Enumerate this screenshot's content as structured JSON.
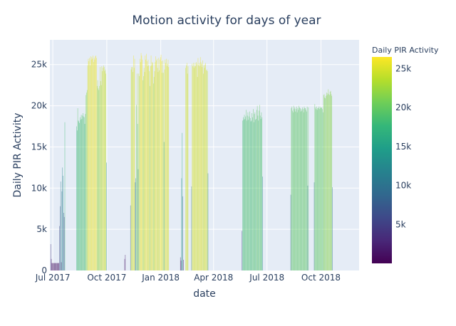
{
  "chart_data": {
    "type": "bar",
    "title": "Motion activity for days of year",
    "xlabel": "date",
    "ylabel": "Daily PIR Activity",
    "colorbar_title": "Daily PIR Activity",
    "colorscale": "Viridis",
    "colorscale_stops": [
      "#440154",
      "#482878",
      "#3e4989",
      "#31688e",
      "#26828e",
      "#1f9e89",
      "#35b779",
      "#6ece58",
      "#b5de2b",
      "#fde725"
    ],
    "color_range": [
      0,
      26500
    ],
    "xlim": [
      "2017-06-26",
      "2018-12-05"
    ],
    "ylim": [
      0,
      28000
    ],
    "x_ticks": [
      {
        "date": "2017-07-01",
        "label": "Jul 2017"
      },
      {
        "date": "2017-10-01",
        "label": "Oct 2017"
      },
      {
        "date": "2018-01-01",
        "label": "Jan 2018"
      },
      {
        "date": "2018-04-01",
        "label": "Apr 2018"
      },
      {
        "date": "2018-07-01",
        "label": "Jul 2018"
      },
      {
        "date": "2018-10-01",
        "label": "Oct 2018"
      }
    ],
    "y_ticks": [
      {
        "value": 0,
        "label": "0"
      },
      {
        "value": 5000,
        "label": "5k"
      },
      {
        "value": 10000,
        "label": "10k"
      },
      {
        "value": 15000,
        "label": "15k"
      },
      {
        "value": 20000,
        "label": "20k"
      },
      {
        "value": 25000,
        "label": "25k"
      }
    ],
    "colorbar_ticks": [
      {
        "value": 5000,
        "label": "5k"
      },
      {
        "value": 10000,
        "label": "10k"
      },
      {
        "value": 15000,
        "label": "15k"
      },
      {
        "value": 20000,
        "label": "20k"
      },
      {
        "value": 25000,
        "label": "25k"
      }
    ],
    "series": [
      {
        "name": "Daily PIR Activity",
        "segments": [
          {
            "start": "2017-06-27",
            "values": [
              3200,
              1400,
              900,
              900,
              900,
              900,
              900,
              900,
              900,
              900,
              900,
              900,
              900,
              900,
              900,
              5400,
              7800,
              10800,
              1000,
              9600,
              12500,
              11500,
              7000,
              6500,
              18000
            ]
          },
          {
            "start": "2017-08-10",
            "values": [
              17500,
              17000,
              19700,
              18200,
              18100,
              17900,
              18600,
              18300,
              18900,
              18400,
              18800,
              19100,
              18700,
              18600,
              17800,
              19000,
              21300,
              21600,
              21900,
              24900,
              25700,
              25400,
              25800,
              24900,
              26000,
              25600,
              25900,
              25700,
              26100,
              25300,
              25800,
              25600,
              26000,
              26100,
              25800,
              22400,
              23100,
              22100,
              21900,
              22400,
              24700,
              23000,
              22500,
              24800,
              24200,
              24600,
              24900,
              24700,
              24200,
              24400,
              23900,
              13100
            ]
          },
          {
            "start": "2017-10-31",
            "values": [
              1400,
              1900
            ]
          },
          {
            "start": "2017-11-10",
            "values": [
              7900,
              24400,
              24700,
              24700,
              24100,
              26100,
              24600,
              25700,
              10700,
              11200,
              20100,
              23900,
              17800,
              12300,
              23900,
              23600,
              25700,
              25300,
              26400,
              26100,
              25600,
              23100,
              23600,
              24600,
              24100,
              26100,
              25600,
              26300,
              25400,
              24800,
              25600,
              24900,
              24200,
              22400,
              24800,
              26100,
              24900,
              25300,
              25200,
              22700,
              23500,
              24200,
              25300,
              26000,
              25500,
              25700,
              24600,
              24100,
              25800,
              24300,
              25600,
              25900,
              26200,
              25400,
              24000,
              25500,
              24000,
              15600,
              24400,
              25600,
              25200,
              25700,
              24800,
              25100,
              25600,
              24700
            ]
          },
          {
            "start": "2018-02-03",
            "values": [
              1600,
              1200,
              11200,
              16700,
              9000,
              1300
            ]
          },
          {
            "start": "2018-02-12",
            "values": [
              24600,
              24900,
              25200,
              23900,
              24800
            ]
          },
          {
            "start": "2018-02-22",
            "values": [
              10200,
              25100,
              24800,
              25200,
              24600,
              24800,
              25200,
              24800,
              25300,
              25100,
              23500,
              25800,
              24900,
              25200,
              24800,
              25900,
              25300,
              25100,
              24700,
              25500,
              23900,
              24900,
              24600,
              25000,
              25200,
              24300,
              24400,
              24200,
              11800
            ]
          },
          {
            "start": "2018-05-19",
            "values": [
              4800,
              18200,
              18600,
              18300,
              18900,
              18400,
              18700,
              19500,
              18200,
              18800,
              19200,
              18300,
              18700,
              19300,
              18500,
              18100,
              18200,
              19100,
              18600,
              19600,
              18000,
              19000,
              19200,
              18300,
              18400,
              19500,
              20000,
              18800,
              18200,
              19400,
              20100,
              18800,
              18400,
              19200,
              18600,
              11400
            ]
          },
          {
            "start": "2018-08-10",
            "values": [
              9200,
              19700,
              19900,
              19400,
              19200,
              20000,
              19600,
              19800,
              19300,
              19600,
              19900,
              19200,
              19700,
              19500,
              20000,
              19800,
              19700,
              19300,
              19600,
              19400,
              19800,
              19600,
              19200,
              19900,
              19700,
              19700,
              19500,
              19300,
              19900,
              10300,
              19800
            ]
          },
          {
            "start": "2018-09-19",
            "values": [
              10700,
              20200,
              19800,
              19600,
              19900,
              19500,
              19700,
              19700,
              19900,
              19600,
              19900,
              19700,
              19800,
              19800,
              19600,
              19200,
              21300,
              21400,
              21000,
              20900,
              21200,
              21600,
              21300,
              21500,
              22000,
              21400,
              21300,
              21700,
              21800,
              21400,
              21200,
              10100
            ]
          }
        ]
      }
    ]
  }
}
